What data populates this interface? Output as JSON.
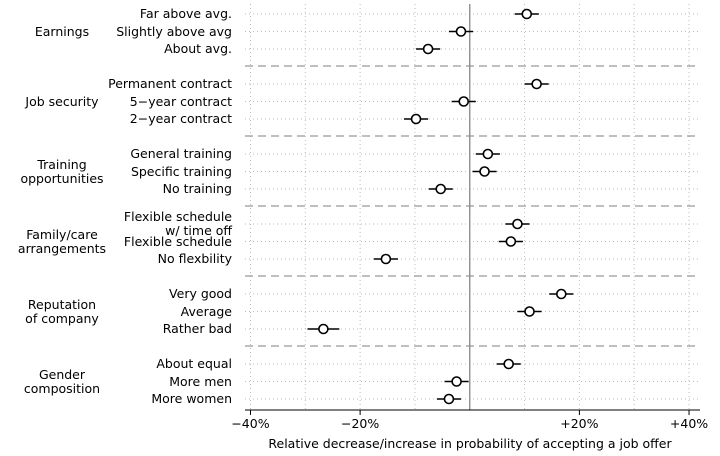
{
  "chart_data": {
    "type": "coefplot",
    "xlabel": "Relative decrease/increase in probability of accepting a job offer",
    "groups": [
      {
        "name": "Earnings",
        "categories": [
          "Far above avg.",
          "Slightly above avg",
          "About avg."
        ],
        "values": [
          10.4,
          -1.6,
          -7.6
        ],
        "errors": [
          2.2,
          2.2,
          2.2
        ]
      },
      {
        "name": "Job security",
        "categories": [
          "Permanent contract",
          "5−year contract",
          "2−year contract"
        ],
        "values": [
          12.2,
          -1.1,
          -9.8
        ],
        "errors": [
          2.2,
          2.2,
          2.2
        ]
      },
      {
        "name": "Training\nopportunities",
        "categories": [
          "General training",
          "Specific training",
          "No training"
        ],
        "values": [
          3.3,
          2.7,
          -5.3
        ],
        "errors": [
          2.2,
          2.2,
          2.2
        ]
      },
      {
        "name": "Family/care\narrangements",
        "categories": [
          "Flexible schedule\nw/ time off",
          "Flexible schedule",
          "No flexbility"
        ],
        "values": [
          8.7,
          7.5,
          -15.3
        ],
        "errors": [
          2.2,
          2.2,
          2.2
        ]
      },
      {
        "name": "Reputation\nof company",
        "categories": [
          "Very good",
          "Average",
          "Rather bad"
        ],
        "values": [
          16.7,
          10.9,
          -26.7
        ],
        "errors": [
          2.2,
          2.2,
          2.9
        ]
      },
      {
        "name": "Gender\ncomposition",
        "categories": [
          "About equal",
          "More men",
          "More women"
        ],
        "values": [
          7.1,
          -2.4,
          -3.8
        ],
        "errors": [
          2.2,
          2.2,
          2.2
        ]
      }
    ],
    "xlim": [
      -41,
      42
    ],
    "xticks": [
      {
        "value": -40,
        "label": "−40%"
      },
      {
        "value": -20,
        "label": "−20%"
      },
      {
        "value": 20,
        "label": "+20%"
      },
      {
        "value": 40,
        "label": "+40%"
      }
    ],
    "xminorticks": [
      -30,
      -10,
      10,
      30
    ],
    "reference_line": 0,
    "grid": true,
    "color": "#000000"
  }
}
